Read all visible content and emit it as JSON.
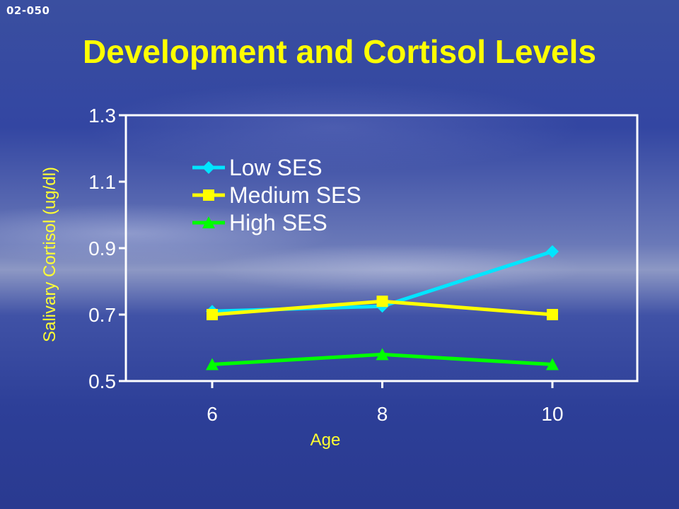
{
  "slide": {
    "code": "02-050",
    "title": "Development and Cortisol Levels"
  },
  "colors": {
    "title": "#ffff00",
    "axis_title": "#ffff33",
    "text": "#ffffff"
  },
  "chart_data": {
    "type": "line",
    "title": "",
    "xlabel": "Age",
    "ylabel": "Salivary Cortisol (ug/dl)",
    "x": [
      6,
      8,
      10
    ],
    "x_tick_labels": [
      "6",
      "8",
      "10"
    ],
    "ylim": [
      0.5,
      1.3
    ],
    "y_ticks": [
      0.5,
      0.7,
      0.9,
      1.1,
      1.3
    ],
    "y_tick_labels": [
      "0.5",
      "0.7",
      "0.9",
      "1.1",
      "1.3"
    ],
    "legend_position": "top-left",
    "series": [
      {
        "name": "Low SES",
        "values": [
          0.71,
          0.725,
          0.89
        ],
        "color": "#00e5ff",
        "marker": "diamond"
      },
      {
        "name": "Medium SES",
        "values": [
          0.7,
          0.74,
          0.7
        ],
        "color": "#ffff00",
        "marker": "square"
      },
      {
        "name": "High SES",
        "values": [
          0.55,
          0.58,
          0.55
        ],
        "color": "#00ff00",
        "marker": "triangle"
      }
    ]
  }
}
